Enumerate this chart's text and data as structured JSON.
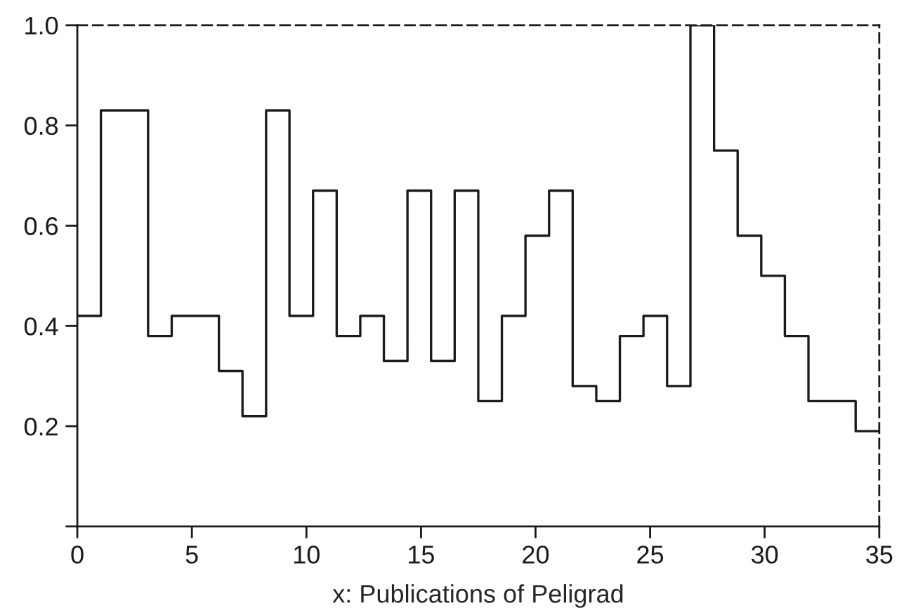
{
  "chart_data": {
    "type": "step",
    "xlabel": "x: Publications of Peligrad",
    "x": [
      0,
      1.03,
      2.06,
      3.09,
      4.12,
      5.15,
      6.18,
      7.21,
      8.24,
      9.26,
      10.29,
      11.32,
      12.35,
      13.38,
      14.41,
      15.44,
      16.47,
      17.5,
      18.53,
      19.56,
      20.59,
      21.62,
      22.65,
      23.68,
      24.71,
      25.74,
      26.76,
      27.79,
      28.82,
      29.85,
      30.88,
      31.91,
      32.94,
      33.97,
      35
    ],
    "series": [
      {
        "color": "#1a1a1a",
        "values": [
          0.42,
          0.83,
          0.83,
          0.38,
          0.42,
          0.42,
          0.31,
          0.22,
          0.83,
          0.42,
          0.67,
          0.38,
          0.42,
          0.33,
          0.67,
          0.33,
          0.67,
          0.25,
          0.42,
          0.58,
          0.67,
          0.28,
          0.25,
          0.38,
          0.42,
          0.28,
          1.0,
          0.75,
          0.58,
          0.5,
          0.38,
          0.25,
          0.25,
          0.19,
          0.19
        ]
      }
    ],
    "xlim": [
      0,
      35
    ],
    "ylim": [
      0,
      1
    ],
    "xticks": [
      0,
      5,
      10,
      15,
      20,
      25,
      30,
      35
    ],
    "yticks": [
      {
        "value": 0,
        "label": null
      },
      0.2,
      0.4,
      0.6,
      0.8,
      {
        "value": 1.0,
        "label": "1.0"
      }
    ],
    "grid": false,
    "line_style": "solid",
    "marker": "none"
  }
}
